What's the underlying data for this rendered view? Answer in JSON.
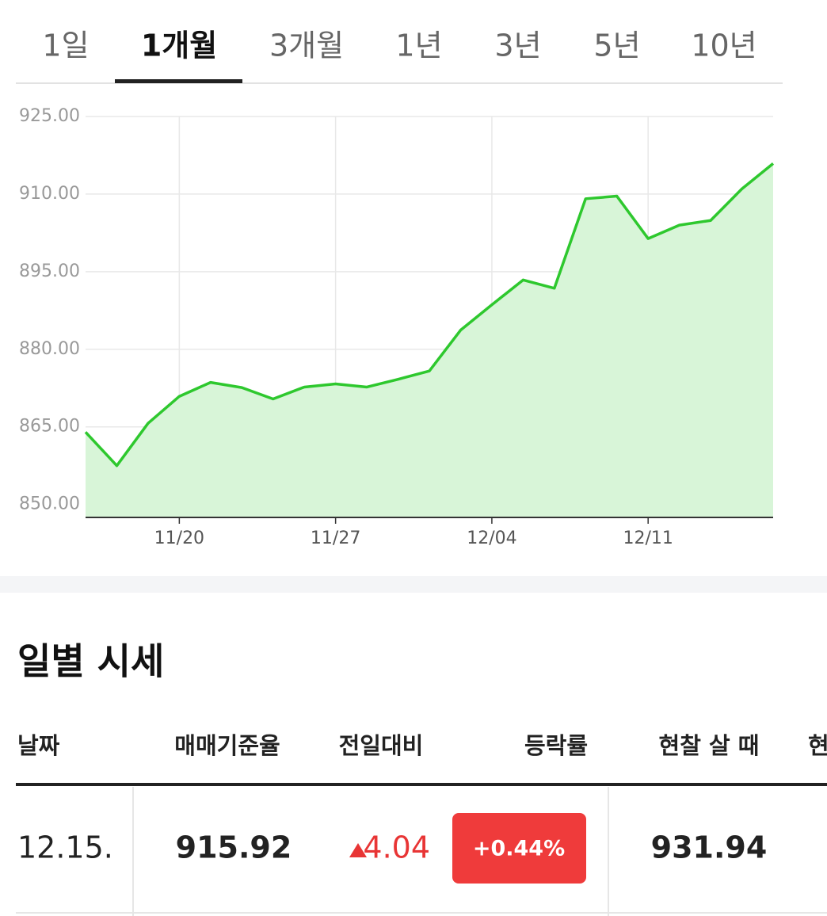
{
  "tabs": [
    "1일",
    "1개월",
    "3개월",
    "1년",
    "3년",
    "5년",
    "10년"
  ],
  "active_tab": 1,
  "chart_data": {
    "type": "line",
    "categories": [
      null,
      null,
      null,
      "11/20",
      null,
      null,
      null,
      null,
      "11/27",
      null,
      null,
      null,
      null,
      "12/04",
      null,
      null,
      null,
      null,
      "12/11",
      null,
      null,
      null,
      null
    ],
    "series": [
      {
        "color": "#2ec82e",
        "values": [
          864.0,
          857.5,
          865.7,
          870.9,
          873.6,
          872.6,
          870.4,
          872.7,
          873.3,
          872.7,
          874.2,
          875.8,
          883.7,
          888.6,
          893.4,
          891.8,
          909.1,
          909.6,
          901.4,
          904.0,
          904.9,
          911.0,
          915.9
        ]
      }
    ],
    "ylim": [
      847.5,
      925
    ],
    "yticks": [
      {
        "value": 850,
        "label": "850.00"
      },
      {
        "value": 865,
        "label": "865.00"
      },
      {
        "value": 880,
        "label": "880.00"
      },
      {
        "value": 895,
        "label": "895.00"
      },
      {
        "value": 910,
        "label": "910.00"
      },
      {
        "value": 925,
        "label": "925.00"
      }
    ],
    "grid": true,
    "fill": "#d8f5d8"
  },
  "section_title": "일별 시세",
  "table": {
    "headers": [
      "날짜",
      "매매기준율",
      "전일대비",
      "등락률",
      "현찰 살 때",
      "현"
    ],
    "rows": [
      [
        "12.15.",
        "915.92",
        "4.04",
        "+0.44%",
        "931.94"
      ]
    ]
  }
}
